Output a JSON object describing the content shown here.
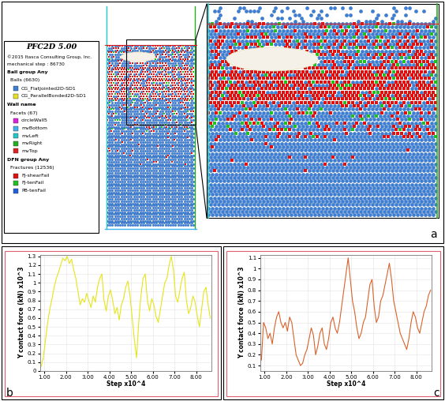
{
  "panel_labels": [
    "a",
    "b",
    "c"
  ],
  "panel_a": {
    "legend": {
      "title": "PFC2D 5.00",
      "lines": [
        "©2015 Itasca Consulting Group, Inc.",
        "mechanical step : 86730"
      ],
      "groups": [
        {
          "header": "Ball group Any",
          "count": "Balls (6630)",
          "items": [
            {
              "name": "CG_FlatJointed2D-SD1",
              "color": "#3a7fd5"
            },
            {
              "name": "CG_ParallelBonded2D-SD1",
              "color": "#e8e020"
            }
          ]
        },
        {
          "header": "Wall name",
          "count": "Facets (67)",
          "items": [
            {
              "name": "circleWall5",
              "color": "#e020e0"
            },
            {
              "name": "mvBottom",
              "color": "#40b0f0"
            },
            {
              "name": "mvLeft",
              "color": "#20c8c8"
            },
            {
              "name": "mvRight",
              "color": "#20b020"
            },
            {
              "name": "mvTop",
              "color": "#e02020"
            }
          ]
        },
        {
          "header": "DFN group Any",
          "count": "Fractures (12536)",
          "items": [
            {
              "name": "FJ-shearFail",
              "color": "#e01010"
            },
            {
              "name": "FJ-tenFail",
              "color": "#20c020"
            },
            {
              "name": "PB-tenFail",
              "color": "#2060e0"
            }
          ]
        }
      ]
    }
  },
  "chart_data": [
    {
      "type": "line",
      "xlabel": "Step x10^4",
      "ylabel": "Y contact force (kN) x10^3",
      "color": "#e5e51a",
      "grid": true,
      "x": [
        0.85,
        0.95,
        1.05,
        1.15,
        1.25,
        1.35,
        1.45,
        1.55,
        1.65,
        1.75,
        1.85,
        1.95,
        2.05,
        2.15,
        2.25,
        2.35,
        2.45,
        2.55,
        2.65,
        2.75,
        2.85,
        2.95,
        3.05,
        3.15,
        3.25,
        3.35,
        3.45,
        3.55,
        3.65,
        3.75,
        3.85,
        3.95,
        4.05,
        4.15,
        4.25,
        4.35,
        4.45,
        4.55,
        4.65,
        4.75,
        4.85,
        4.95,
        5.05,
        5.15,
        5.25,
        5.35,
        5.45,
        5.55,
        5.65,
        5.75,
        5.85,
        5.95,
        6.05,
        6.15,
        6.25,
        6.35,
        6.45,
        6.55,
        6.65,
        6.75,
        6.85,
        6.95,
        7.05,
        7.15,
        7.25,
        7.35,
        7.45,
        7.55,
        7.65,
        7.75,
        7.85,
        7.95,
        8.05,
        8.15,
        8.25,
        8.35,
        8.45,
        8.55,
        8.65
      ],
      "values": [
        0.05,
        0.15,
        0.35,
        0.55,
        0.7,
        0.82,
        0.95,
        1.05,
        1.12,
        1.2,
        1.28,
        1.25,
        1.3,
        1.22,
        1.27,
        1.15,
        1.05,
        0.9,
        0.75,
        0.82,
        0.78,
        0.88,
        0.8,
        0.72,
        0.85,
        0.78,
        0.95,
        1.05,
        1.1,
        0.8,
        0.68,
        0.85,
        0.92,
        0.8,
        0.65,
        0.72,
        0.58,
        0.75,
        0.82,
        0.95,
        1.02,
        0.85,
        0.6,
        0.35,
        0.15,
        0.55,
        0.85,
        1.05,
        1.1,
        0.8,
        0.68,
        0.82,
        0.75,
        0.62,
        0.55,
        0.7,
        0.85,
        1.0,
        1.05,
        1.2,
        1.3,
        1.15,
        0.85,
        0.78,
        0.92,
        1.05,
        1.12,
        0.8,
        0.65,
        0.72,
        0.85,
        0.78,
        0.62,
        0.5,
        0.7,
        0.9,
        0.95,
        0.75,
        0.6
      ],
      "xlim": [
        0.8,
        8.7
      ],
      "xticks": [
        {
          "value": 1,
          "label": "1.00"
        },
        {
          "value": 2,
          "label": "2.00"
        },
        {
          "value": 3,
          "label": "3.00"
        },
        {
          "value": 4,
          "label": "4.00"
        },
        {
          "value": 5,
          "label": "5.00"
        },
        {
          "value": 6,
          "label": "6.00"
        },
        {
          "value": 7,
          "label": "7.00"
        },
        {
          "value": 8,
          "label": "8.00"
        }
      ],
      "ylim": [
        0,
        1.32
      ],
      "yticks": [
        0,
        0.1,
        0.2,
        0.3,
        0.4,
        0.5,
        0.6,
        0.7,
        0.8,
        0.9,
        1,
        1.1,
        1.2,
        1.3
      ]
    },
    {
      "type": "line",
      "xlabel": "Step x10^4",
      "ylabel": "Y contact force (kN) x10^3",
      "color": "#d9622b",
      "grid": true,
      "x": [
        0.85,
        0.95,
        1.05,
        1.15,
        1.25,
        1.35,
        1.45,
        1.55,
        1.65,
        1.75,
        1.85,
        1.95,
        2.05,
        2.15,
        2.25,
        2.35,
        2.45,
        2.55,
        2.65,
        2.75,
        2.85,
        2.95,
        3.05,
        3.15,
        3.25,
        3.35,
        3.45,
        3.55,
        3.65,
        3.75,
        3.85,
        3.95,
        4.05,
        4.15,
        4.25,
        4.35,
        4.45,
        4.55,
        4.65,
        4.75,
        4.85,
        4.95,
        5.05,
        5.15,
        5.25,
        5.35,
        5.45,
        5.55,
        5.65,
        5.75,
        5.85,
        5.95,
        6.05,
        6.15,
        6.25,
        6.35,
        6.45,
        6.55,
        6.65,
        6.75,
        6.85,
        6.95,
        7.05,
        7.15,
        7.25,
        7.35,
        7.45,
        7.55,
        7.65,
        7.75,
        7.85,
        7.95,
        8.05,
        8.15,
        8.25,
        8.35,
        8.45,
        8.55,
        8.65
      ],
      "values": [
        0.15,
        0.5,
        0.45,
        0.35,
        0.4,
        0.3,
        0.45,
        0.55,
        0.6,
        0.5,
        0.45,
        0.5,
        0.42,
        0.55,
        0.5,
        0.35,
        0.2,
        0.15,
        0.1,
        0.12,
        0.2,
        0.25,
        0.35,
        0.45,
        0.38,
        0.2,
        0.28,
        0.4,
        0.45,
        0.3,
        0.25,
        0.35,
        0.5,
        0.55,
        0.45,
        0.4,
        0.5,
        0.65,
        0.8,
        0.95,
        1.1,
        0.9,
        0.7,
        0.6,
        0.45,
        0.35,
        0.4,
        0.5,
        0.55,
        0.7,
        0.85,
        0.9,
        0.65,
        0.5,
        0.55,
        0.7,
        0.75,
        0.85,
        0.95,
        1.05,
        0.9,
        0.7,
        0.6,
        0.5,
        0.4,
        0.35,
        0.3,
        0.25,
        0.35,
        0.5,
        0.6,
        0.55,
        0.45,
        0.4,
        0.5,
        0.6,
        0.65,
        0.75,
        0.8
      ],
      "xlim": [
        0.8,
        8.7
      ],
      "xticks": [
        {
          "value": 1,
          "label": "1.00"
        },
        {
          "value": 2,
          "label": "2.00"
        },
        {
          "value": 3,
          "label": "3.00"
        },
        {
          "value": 4,
          "label": "4.00"
        },
        {
          "value": 5,
          "label": "5.00"
        },
        {
          "value": 6,
          "label": "6.00"
        },
        {
          "value": 7,
          "label": "7.00"
        },
        {
          "value": 8,
          "label": "8.00"
        }
      ],
      "ylim": [
        0.05,
        1.13
      ],
      "yticks": [
        0.1,
        0.2,
        0.3,
        0.4,
        0.5,
        0.6,
        0.7,
        0.8,
        0.9,
        1,
        1.1
      ]
    }
  ]
}
